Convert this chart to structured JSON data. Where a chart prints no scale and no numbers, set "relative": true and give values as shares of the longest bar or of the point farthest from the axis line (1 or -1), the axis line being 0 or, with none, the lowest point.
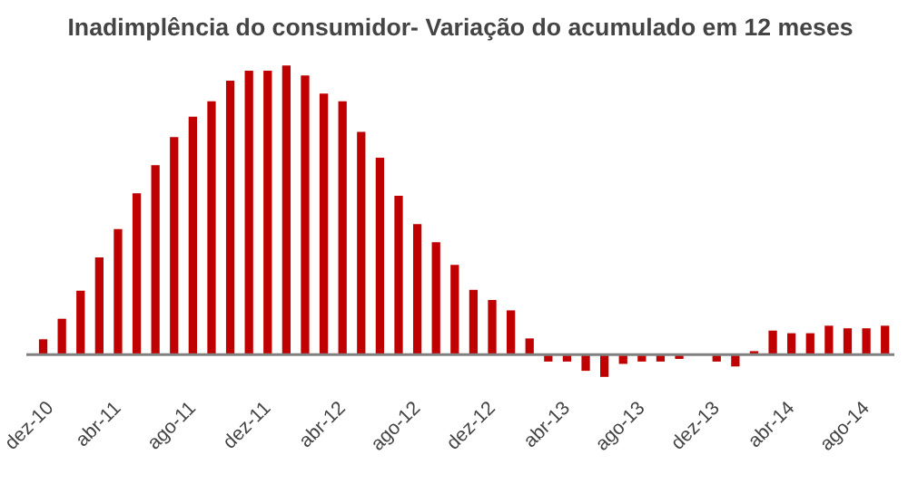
{
  "chart_data": {
    "type": "bar",
    "title": "Inadimplência do consumidor- Variação do acumulado em 12 meses",
    "relative": true,
    "color": "#c00000",
    "categories": [
      "dez-10",
      null,
      null,
      null,
      "abr-11",
      null,
      null,
      null,
      "ago-11",
      null,
      null,
      null,
      "dez-11",
      null,
      null,
      null,
      "abr-12",
      null,
      null,
      null,
      "ago-12",
      null,
      null,
      null,
      "dez-12",
      null,
      null,
      null,
      "abr-13",
      null,
      null,
      null,
      "ago-13",
      null,
      null,
      null,
      "dez-13",
      null,
      null,
      null,
      "abr-14",
      null,
      null,
      null,
      "ago-14",
      null
    ],
    "values": [
      0.053,
      0.124,
      0.221,
      0.336,
      0.434,
      0.558,
      0.655,
      0.752,
      0.823,
      0.876,
      0.947,
      0.982,
      0.982,
      1,
      0.965,
      0.903,
      0.876,
      0.77,
      0.681,
      0.549,
      0.451,
      0.389,
      0.31,
      0.224,
      0.189,
      0.153,
      0.056,
      -0.024,
      -0.024,
      -0.056,
      -0.077,
      -0.032,
      -0.024,
      -0.024,
      -0.015,
      0,
      -0.024,
      -0.041,
      0.012,
      0.083,
      0.074,
      0.074,
      0.1,
      0.091,
      0.091,
      0.1
    ]
  }
}
